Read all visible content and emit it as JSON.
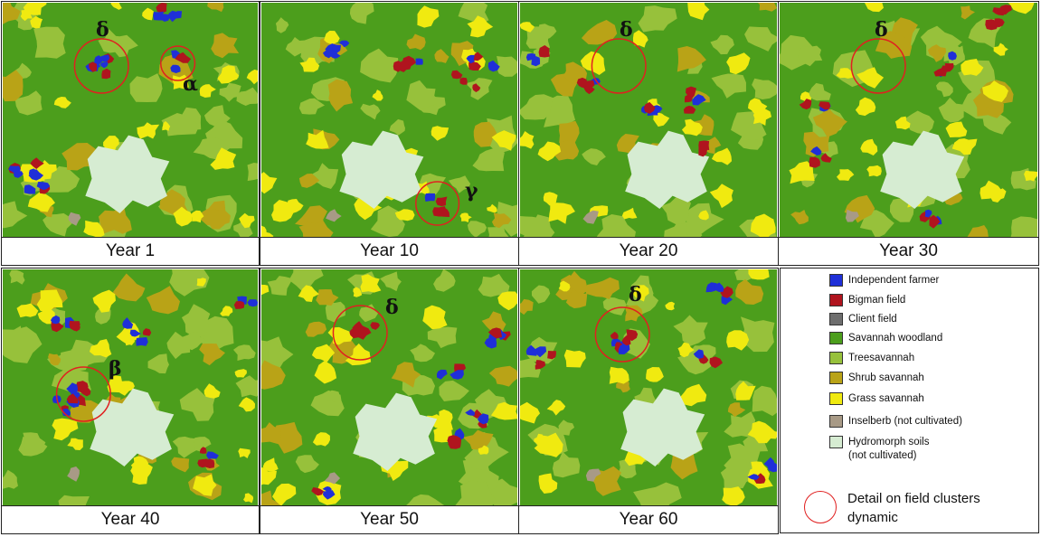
{
  "panels": [
    {
      "caption": "Year 1",
      "greeks": [
        "δ",
        "α"
      ]
    },
    {
      "caption": "Year 10",
      "greeks": [
        "γ"
      ]
    },
    {
      "caption": "Year 20",
      "greeks": [
        "δ"
      ]
    },
    {
      "caption": "Year 30",
      "greeks": [
        "δ"
      ]
    },
    {
      "caption": "Year 40",
      "greeks": [
        "β"
      ]
    },
    {
      "caption": "Year 50",
      "greeks": [
        "δ"
      ]
    },
    {
      "caption": "Year 60",
      "greeks": [
        "δ"
      ]
    }
  ],
  "legend": {
    "items": [
      {
        "label": "Independent farmer",
        "color": "#1f2fd8"
      },
      {
        "label": "Bigman field",
        "color": "#b0141e"
      },
      {
        "label": "Client field",
        "color": "#6e6e6e"
      },
      {
        "label": "Savannah woodland",
        "color": "#4c9e1c"
      },
      {
        "label": "Treesavannah",
        "color": "#97c13b"
      },
      {
        "label": "Shrub savannah",
        "color": "#b9a317"
      },
      {
        "label": "Grass savannah",
        "color": "#f0ea10"
      },
      {
        "label": "Inselberb (not cultivated)",
        "color": "#a89a86"
      },
      {
        "label": "Hydromorph soils",
        "color": "#d6ecd2"
      }
    ],
    "hydromorph_sub": "(not cultivated)",
    "circle_label": "Detail on field clusters dynamic"
  },
  "colors": {
    "woodland": "#4c9e1c",
    "tree": "#97c13b",
    "shrub": "#b9a317",
    "grass": "#f0ea10",
    "farmer": "#1f2fd8",
    "bigman": "#b0141e",
    "inselberg": "#a89a86",
    "hydro": "#d6ecd2",
    "circle": "#e02020"
  }
}
